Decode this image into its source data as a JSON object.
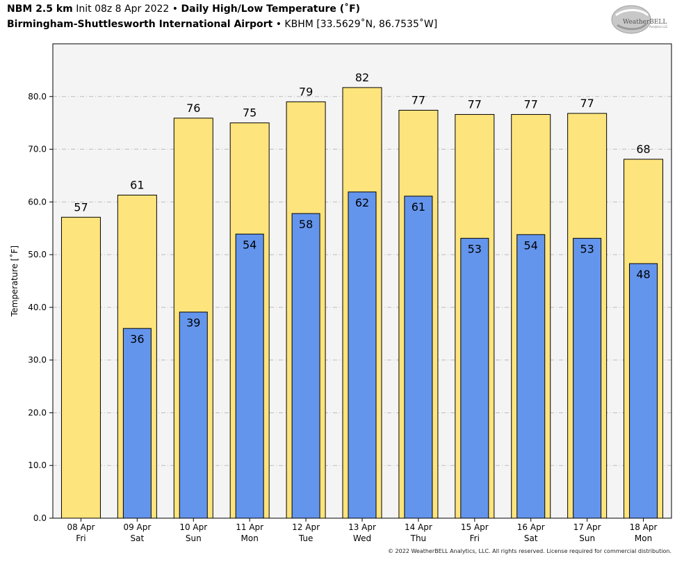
{
  "header": {
    "model": "NBM 2.5 km",
    "init": "Init 08z 8 Apr 2022",
    "sep": "•",
    "product": "Daily High/Low Temperature (˚F)",
    "station": "Birmingham-Shuttlesworth International Airport",
    "coords": "KBHM [33.5629˚N, 86.7535˚W]"
  },
  "logo": {
    "text_main": "WeatherBELL",
    "text_sub": "Analytics LLC"
  },
  "footer": "© 2022 WeatherBELL Analytics, LLC. All rights reserved. License required for commercial distribution.",
  "colors": {
    "high": "#fee47c",
    "low": "#6495ed",
    "plot_bg": "#f4f4f4",
    "grid": "#bbbbbb"
  },
  "chart_data": {
    "type": "bar",
    "title": "Daily High/Low Temperature (˚F)",
    "ylabel": "Temperature [˚F]",
    "xlabel": "",
    "ylim": [
      0,
      90
    ],
    "yticks": [
      0,
      10,
      20,
      30,
      40,
      50,
      60,
      70,
      80
    ],
    "ytick_labels": [
      "0.0",
      "10.0",
      "20.0",
      "30.0",
      "40.0",
      "50.0",
      "60.0",
      "70.0",
      "80.0"
    ],
    "grid": true,
    "categories": [
      {
        "date": "08 Apr",
        "day": "Fri"
      },
      {
        "date": "09 Apr",
        "day": "Sat"
      },
      {
        "date": "10 Apr",
        "day": "Sun"
      },
      {
        "date": "11 Apr",
        "day": "Mon"
      },
      {
        "date": "12 Apr",
        "day": "Tue"
      },
      {
        "date": "13 Apr",
        "day": "Wed"
      },
      {
        "date": "14 Apr",
        "day": "Thu"
      },
      {
        "date": "15 Apr",
        "day": "Fri"
      },
      {
        "date": "16 Apr",
        "day": "Sat"
      },
      {
        "date": "17 Apr",
        "day": "Sun"
      },
      {
        "date": "18 Apr",
        "day": "Mon"
      }
    ],
    "series": [
      {
        "key": "high",
        "values": [
          57.1,
          61.3,
          75.9,
          75.0,
          79.0,
          81.7,
          77.4,
          76.6,
          76.6,
          76.8,
          68.1
        ],
        "labels": [
          "57",
          "61",
          "76",
          "75",
          "79",
          "82",
          "77",
          "77",
          "77",
          "77",
          "68"
        ]
      },
      {
        "key": "low",
        "values": [
          null,
          36.0,
          39.1,
          53.9,
          57.8,
          61.9,
          61.1,
          53.1,
          53.8,
          53.1,
          48.3
        ],
        "labels": [
          "",
          "36",
          "39",
          "54",
          "58",
          "62",
          "61",
          "53",
          "54",
          "53",
          "48"
        ]
      }
    ]
  }
}
